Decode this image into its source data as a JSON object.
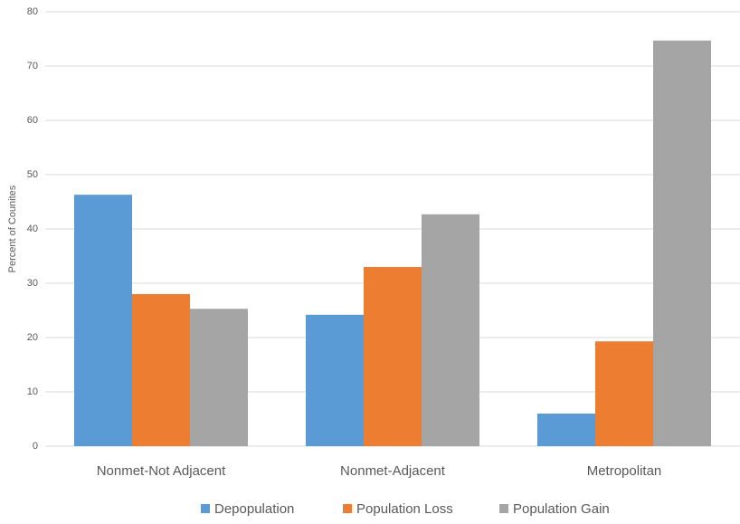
{
  "chart_data": {
    "type": "bar",
    "y_label": "Percent of Counites",
    "categories": [
      "Nonmet-Not Adjacent",
      "Nonmet-Adjacent",
      "Metropolitan"
    ],
    "series": [
      {
        "name": "Depopulation",
        "color": "#5b9bd5",
        "values": [
          46.3,
          24.2,
          6.0
        ]
      },
      {
        "name": "Population Loss",
        "color": "#ed7d31",
        "values": [
          28.0,
          33.0,
          19.3
        ]
      },
      {
        "name": "Population Gain",
        "color": "#a5a5a5",
        "values": [
          25.3,
          42.7,
          74.7
        ]
      }
    ],
    "ylim": [
      0,
      80
    ],
    "yticks": [
      0,
      10,
      20,
      30,
      40,
      50,
      60,
      70,
      80
    ],
    "grid": true,
    "legend": "bottom"
  }
}
